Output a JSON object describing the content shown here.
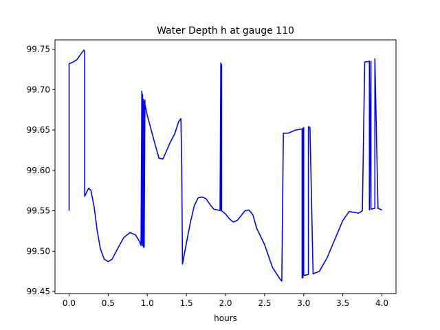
{
  "chart_data": {
    "type": "line",
    "title": "Water Depth h at gauge 110",
    "xlabel": "hours",
    "ylabel": "",
    "xlim": [
      -0.18,
      4.18
    ],
    "ylim": [
      99.4475,
      99.7615
    ],
    "xticks": [
      0.0,
      0.5,
      1.0,
      1.5,
      2.0,
      2.5,
      3.0,
      3.5,
      4.0
    ],
    "xtick_labels": [
      "0.0",
      "0.5",
      "1.0",
      "1.5",
      "2.0",
      "2.5",
      "3.0",
      "3.5",
      "4.0"
    ],
    "yticks": [
      99.45,
      99.5,
      99.55,
      99.6,
      99.65,
      99.7,
      99.75
    ],
    "ytick_labels": [
      "99.45",
      "99.50",
      "99.55",
      "99.60",
      "99.65",
      "99.70",
      "99.75"
    ],
    "grid": false,
    "series": [
      {
        "color": "#0000ff",
        "x": [
          0.0,
          0.0,
          0.05,
          0.1,
          0.15,
          0.19,
          0.2,
          0.2,
          0.25,
          0.28,
          0.32,
          0.36,
          0.4,
          0.45,
          0.5,
          0.55,
          0.62,
          0.7,
          0.78,
          0.85,
          0.9,
          0.92,
          0.93,
          0.93,
          0.94,
          0.94,
          0.95,
          0.95,
          0.96,
          0.96,
          0.97,
          0.97,
          1.0,
          1.05,
          1.1,
          1.15,
          1.2,
          1.25,
          1.3,
          1.35,
          1.4,
          1.43,
          1.44,
          1.45,
          1.5,
          1.55,
          1.6,
          1.65,
          1.7,
          1.75,
          1.8,
          1.85,
          1.9,
          1.93,
          1.94,
          1.94,
          1.95,
          1.95,
          2.0,
          2.05,
          2.1,
          2.15,
          2.2,
          2.25,
          2.3,
          2.35,
          2.4,
          2.5,
          2.6,
          2.7,
          2.72,
          2.74,
          2.74,
          2.8,
          2.85,
          2.9,
          2.96,
          2.98,
          2.98,
          2.99,
          2.99,
          3.0,
          3.0,
          3.06,
          3.06,
          3.08,
          3.12,
          3.2,
          3.3,
          3.4,
          3.5,
          3.58,
          3.65,
          3.7,
          3.75,
          3.78,
          3.78,
          3.84,
          3.84,
          3.86,
          3.86,
          3.91,
          3.91,
          3.95,
          4.0
        ],
        "y": [
          99.55,
          99.732,
          99.734,
          99.737,
          99.744,
          99.749,
          99.747,
          99.568,
          99.578,
          99.575,
          99.555,
          99.525,
          99.503,
          99.49,
          99.487,
          99.49,
          99.503,
          99.517,
          99.523,
          99.52,
          99.512,
          99.507,
          99.698,
          99.51,
          99.694,
          99.507,
          99.688,
          99.505,
          99.685,
          99.505,
          99.687,
          99.682,
          99.668,
          99.65,
          99.632,
          99.615,
          99.614,
          99.625,
          99.636,
          99.645,
          99.66,
          99.664,
          99.61,
          99.484,
          99.51,
          99.535,
          99.556,
          99.566,
          99.567,
          99.565,
          99.558,
          99.552,
          99.551,
          99.55,
          99.733,
          99.551,
          99.731,
          99.55,
          99.546,
          99.54,
          99.536,
          99.538,
          99.544,
          99.55,
          99.551,
          99.545,
          99.528,
          99.508,
          99.48,
          99.465,
          99.463,
          99.646,
          99.646,
          99.646,
          99.648,
          99.65,
          99.651,
          99.651,
          99.467,
          99.467,
          99.652,
          99.653,
          99.47,
          99.471,
          99.654,
          99.653,
          99.472,
          99.475,
          99.492,
          99.515,
          99.538,
          99.549,
          99.548,
          99.547,
          99.55,
          99.734,
          99.734,
          99.735,
          99.551,
          99.735,
          99.552,
          99.553,
          99.738,
          99.553,
          99.551
        ]
      }
    ]
  }
}
